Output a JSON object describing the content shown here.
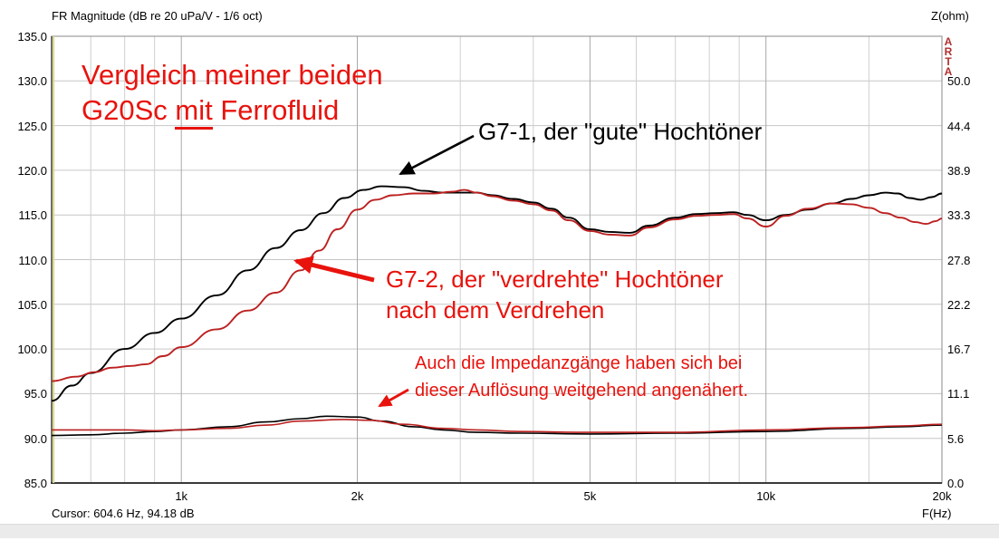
{
  "header": {
    "title": "FR Magnitude (dB re 20 uPa/V - 1/6 oct)",
    "right_axis_title": "Z(ohm)",
    "watermark": "ARTA"
  },
  "footer": {
    "cursor_readout": "Cursor: 604.6 Hz, 94.18 dB",
    "x_axis_title": "F(Hz)"
  },
  "annotations": {
    "heading_line1": "Vergleich meiner beiden",
    "heading_line2_pre": "G20Sc ",
    "heading_line2_underlined": "mit",
    "heading_line2_post": " Ferrofluid",
    "g71_label": "G7-1, der \"gute\" Hochtöner",
    "g72_line1": "G7-2, der \"verdrehte\" Hochtöner",
    "g72_line2": "nach dem Verdrehen",
    "imp_line1": "Auch die Impedanzgänge haben sich bei",
    "imp_line2": "dieser Auflösung weitgehend angenähert."
  },
  "colors": {
    "curve_black": "#000000",
    "curve_red": "#bc2020",
    "annotation_red": "#e8130d",
    "arta_red": "#b03030",
    "cursor_line": "#d9d98a",
    "grid_minor": "#cfcfcf",
    "grid_major_x": "#a8a8a8",
    "grid_h": "#c6c6c6",
    "border": "#777777"
  },
  "chart_data": {
    "type": "line",
    "title": "FR Magnitude (dB re 20 uPa/V - 1/6 oct)",
    "xlabel": "F(Hz)",
    "ylabel_left": "dB",
    "ylabel_right": "Z(ohm)",
    "x_scale": "log",
    "x_range": [
      600,
      20000
    ],
    "y_left_range": [
      85,
      135
    ],
    "y_right_range": [
      0,
      50
    ],
    "y_left_ticks": [
      "135.0",
      "130.0",
      "125.0",
      "120.0",
      "115.0",
      "110.0",
      "105.0",
      "100.0",
      "95.0",
      "90.0",
      "85.0"
    ],
    "y_right_ticks": [
      "50.0",
      "44.4",
      "38.9",
      "33.3",
      "27.8",
      "22.2",
      "16.7",
      "11.1",
      "5.6",
      "0.0"
    ],
    "x_major_ticks": [
      {
        "f": 1000,
        "label": "1k"
      },
      {
        "f": 2000,
        "label": "2k"
      },
      {
        "f": 5000,
        "label": "5k"
      },
      {
        "f": 10000,
        "label": "10k"
      },
      {
        "f": 20000,
        "label": "20k"
      }
    ],
    "x_minor_gridlines": [
      700,
      800,
      900,
      3000,
      4000,
      6000,
      7000,
      8000,
      9000,
      15000
    ],
    "cursor": {
      "frequency_hz": 604.6,
      "level_db": 94.18
    },
    "series": [
      {
        "name": "G7-1 frequency response (der \"gute\" Hochtöner)",
        "axis": "left",
        "unit": "dB",
        "color": "#000000",
        "points": [
          [
            600,
            94.2
          ],
          [
            650,
            95.9
          ],
          [
            700,
            97.3
          ],
          [
            800,
            100.0
          ],
          [
            900,
            101.8
          ],
          [
            1000,
            103.4
          ],
          [
            1150,
            106.0
          ],
          [
            1300,
            108.8
          ],
          [
            1450,
            111.3
          ],
          [
            1600,
            113.3
          ],
          [
            1750,
            115.2
          ],
          [
            1900,
            116.9
          ],
          [
            2050,
            117.8
          ],
          [
            2200,
            118.2
          ],
          [
            2400,
            118.1
          ],
          [
            2600,
            117.7
          ],
          [
            2800,
            117.5
          ],
          [
            3000,
            117.5
          ],
          [
            3200,
            117.5
          ],
          [
            3400,
            117.2
          ],
          [
            3700,
            116.8
          ],
          [
            4000,
            116.4
          ],
          [
            4300,
            115.7
          ],
          [
            4600,
            114.7
          ],
          [
            5000,
            113.4
          ],
          [
            5400,
            113.1
          ],
          [
            5850,
            113.0
          ],
          [
            6300,
            113.8
          ],
          [
            7000,
            114.7
          ],
          [
            7600,
            115.1
          ],
          [
            8200,
            115.2
          ],
          [
            8800,
            115.3
          ],
          [
            9300,
            115.0
          ],
          [
            10000,
            114.4
          ],
          [
            10800,
            115.0
          ],
          [
            11800,
            115.6
          ],
          [
            13000,
            116.3
          ],
          [
            14000,
            116.8
          ],
          [
            15000,
            117.2
          ],
          [
            16000,
            117.5
          ],
          [
            16800,
            117.4
          ],
          [
            17600,
            116.9
          ],
          [
            18400,
            116.7
          ],
          [
            19200,
            117.0
          ],
          [
            20000,
            117.4
          ]
        ]
      },
      {
        "name": "G7-2 frequency response (der \"verdrehte\" Hochtöner nach dem Verdrehen)",
        "axis": "left",
        "unit": "dB",
        "color": "#bc2020",
        "points": [
          [
            600,
            96.4
          ],
          [
            660,
            96.9
          ],
          [
            710,
            97.4
          ],
          [
            760,
            97.9
          ],
          [
            820,
            98.1
          ],
          [
            870,
            98.3
          ],
          [
            930,
            99.2
          ],
          [
            1000,
            100.2
          ],
          [
            1150,
            102.2
          ],
          [
            1300,
            104.3
          ],
          [
            1450,
            106.3
          ],
          [
            1600,
            108.8
          ],
          [
            1720,
            111.0
          ],
          [
            1850,
            113.4
          ],
          [
            2000,
            115.6
          ],
          [
            2150,
            116.7
          ],
          [
            2300,
            117.2
          ],
          [
            2500,
            117.4
          ],
          [
            2700,
            117.4
          ],
          [
            2900,
            117.6
          ],
          [
            3050,
            117.8
          ],
          [
            3200,
            117.5
          ],
          [
            3400,
            117.1
          ],
          [
            3700,
            116.6
          ],
          [
            4000,
            116.2
          ],
          [
            4300,
            115.5
          ],
          [
            4600,
            114.4
          ],
          [
            5000,
            113.2
          ],
          [
            5400,
            112.8
          ],
          [
            5850,
            112.7
          ],
          [
            6300,
            113.6
          ],
          [
            7000,
            114.5
          ],
          [
            7600,
            114.9
          ],
          [
            8200,
            115.0
          ],
          [
            8800,
            115.1
          ],
          [
            9300,
            114.6
          ],
          [
            10000,
            113.7
          ],
          [
            10800,
            114.9
          ],
          [
            11800,
            115.7
          ],
          [
            13000,
            116.3
          ],
          [
            14000,
            116.2
          ],
          [
            15000,
            115.8
          ],
          [
            16000,
            115.2
          ],
          [
            17000,
            114.7
          ],
          [
            18000,
            114.2
          ],
          [
            18800,
            114.0
          ],
          [
            19500,
            114.3
          ],
          [
            20000,
            114.6
          ]
        ]
      },
      {
        "name": "G7-1 impedance",
        "axis": "right",
        "unit": "ohm",
        "color": "#000000",
        "points": [
          [
            600,
            5.9
          ],
          [
            700,
            6.0
          ],
          [
            800,
            6.2
          ],
          [
            900,
            6.4
          ],
          [
            1000,
            6.6
          ],
          [
            1200,
            7.0
          ],
          [
            1400,
            7.6
          ],
          [
            1600,
            8.0
          ],
          [
            1770,
            8.3
          ],
          [
            2000,
            8.2
          ],
          [
            2200,
            7.7
          ],
          [
            2500,
            7.0
          ],
          [
            2800,
            6.6
          ],
          [
            3200,
            6.3
          ],
          [
            3800,
            6.2
          ],
          [
            5000,
            6.1
          ],
          [
            7000,
            6.2
          ],
          [
            10000,
            6.4
          ],
          [
            14000,
            6.8
          ],
          [
            17000,
            7.0
          ],
          [
            20000,
            7.2
          ]
        ]
      },
      {
        "name": "G7-2 impedance",
        "axis": "right",
        "unit": "ohm",
        "color": "#bc2020",
        "points": [
          [
            600,
            6.6
          ],
          [
            800,
            6.6
          ],
          [
            900,
            6.5
          ],
          [
            1000,
            6.6
          ],
          [
            1200,
            6.8
          ],
          [
            1400,
            7.2
          ],
          [
            1600,
            7.7
          ],
          [
            1880,
            7.9
          ],
          [
            2100,
            7.8
          ],
          [
            2400,
            7.3
          ],
          [
            2800,
            6.8
          ],
          [
            3200,
            6.6
          ],
          [
            3800,
            6.4
          ],
          [
            5000,
            6.3
          ],
          [
            7000,
            6.3
          ],
          [
            10000,
            6.6
          ],
          [
            14000,
            6.9
          ],
          [
            17000,
            7.1
          ],
          [
            20000,
            7.3
          ]
        ]
      }
    ]
  }
}
